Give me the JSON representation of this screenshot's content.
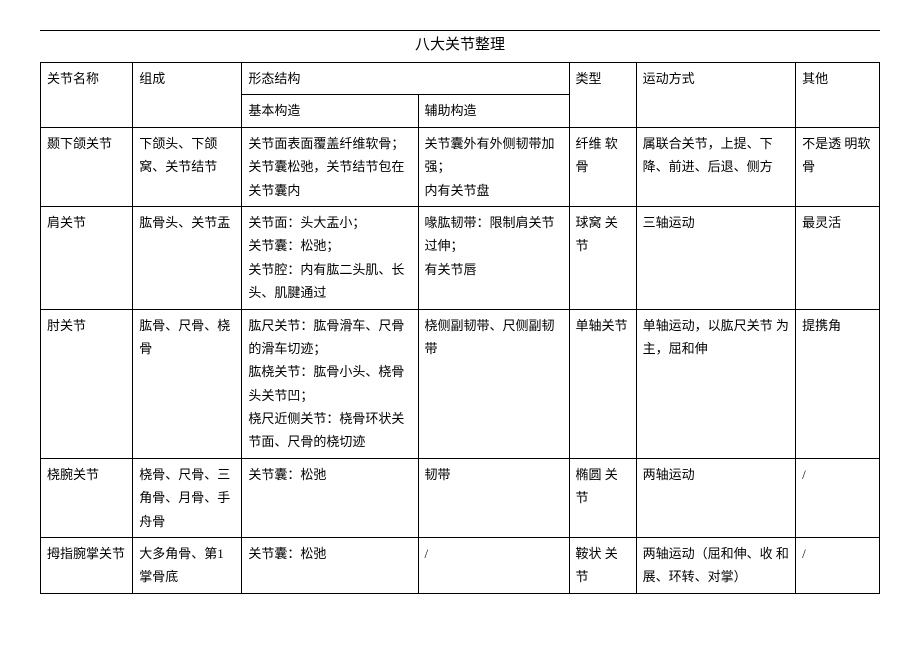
{
  "title": "八大关节整理",
  "header": {
    "name": "关节名称",
    "composition": "组成",
    "morphology": "形态结构",
    "basic": "基本构造",
    "auxiliary": "辅助构造",
    "type": "类型",
    "motion": "运动方式",
    "other": "其他"
  },
  "rows": [
    {
      "name": "颞下颌关节",
      "composition": "下颌头、下颌窝、关节结节",
      "basic": "关节面表面覆盖纤维软骨；关节囊松弛，关节结节包在 关节囊内",
      "auxiliary": "关节囊外有外侧韧带加强；\n内有关节盘",
      "type": "纤维 软骨",
      "motion": "属联合关节，上提、下降、前进、后退、侧方",
      "other": "不是透 明软骨"
    },
    {
      "name": "肩关节",
      "composition": "肱骨头、关节盂",
      "basic": "关节面：头大盂小；\n关节囊：松弛；\n关节腔：内有肱二头肌、长头、肌腱通过",
      "auxiliary": "喙肱韧带：限制肩关节过伸；\n有关节唇",
      "type": "球窝 关节",
      "motion": "三轴运动",
      "other": "最灵活"
    },
    {
      "name": "肘关节",
      "composition": "肱骨、尺骨、桡骨",
      "basic": "肱尺关节：肱骨滑车、尺骨的滑车切迹；\n肱桡关节：肱骨小头、桡骨头关节凹；\n桡尺近侧关节：桡骨环状关 节面、尺骨的桡切迹",
      "auxiliary": "桡侧副韧带、尺侧副韧带",
      "type": "单轴关节",
      "motion": "单轴运动，以肱尺关节 为主，屈和伸",
      "other": "提携角"
    },
    {
      "name": "桡腕关节",
      "composition": "桡骨、尺骨、三角骨、月骨、手舟骨",
      "basic": "关节囊：松弛",
      "auxiliary": "韧带",
      "type": "椭圆 关节",
      "motion": "两轴运动",
      "other": "/"
    },
    {
      "name": "拇指腕掌关节",
      "composition": "大多角骨、第1掌骨底",
      "basic": "关节囊：松弛",
      "auxiliary": "/",
      "type": "鞍状 关节",
      "motion": "两轴运动（屈和伸、收 和展、环转、对掌）",
      "other": "/"
    }
  ]
}
